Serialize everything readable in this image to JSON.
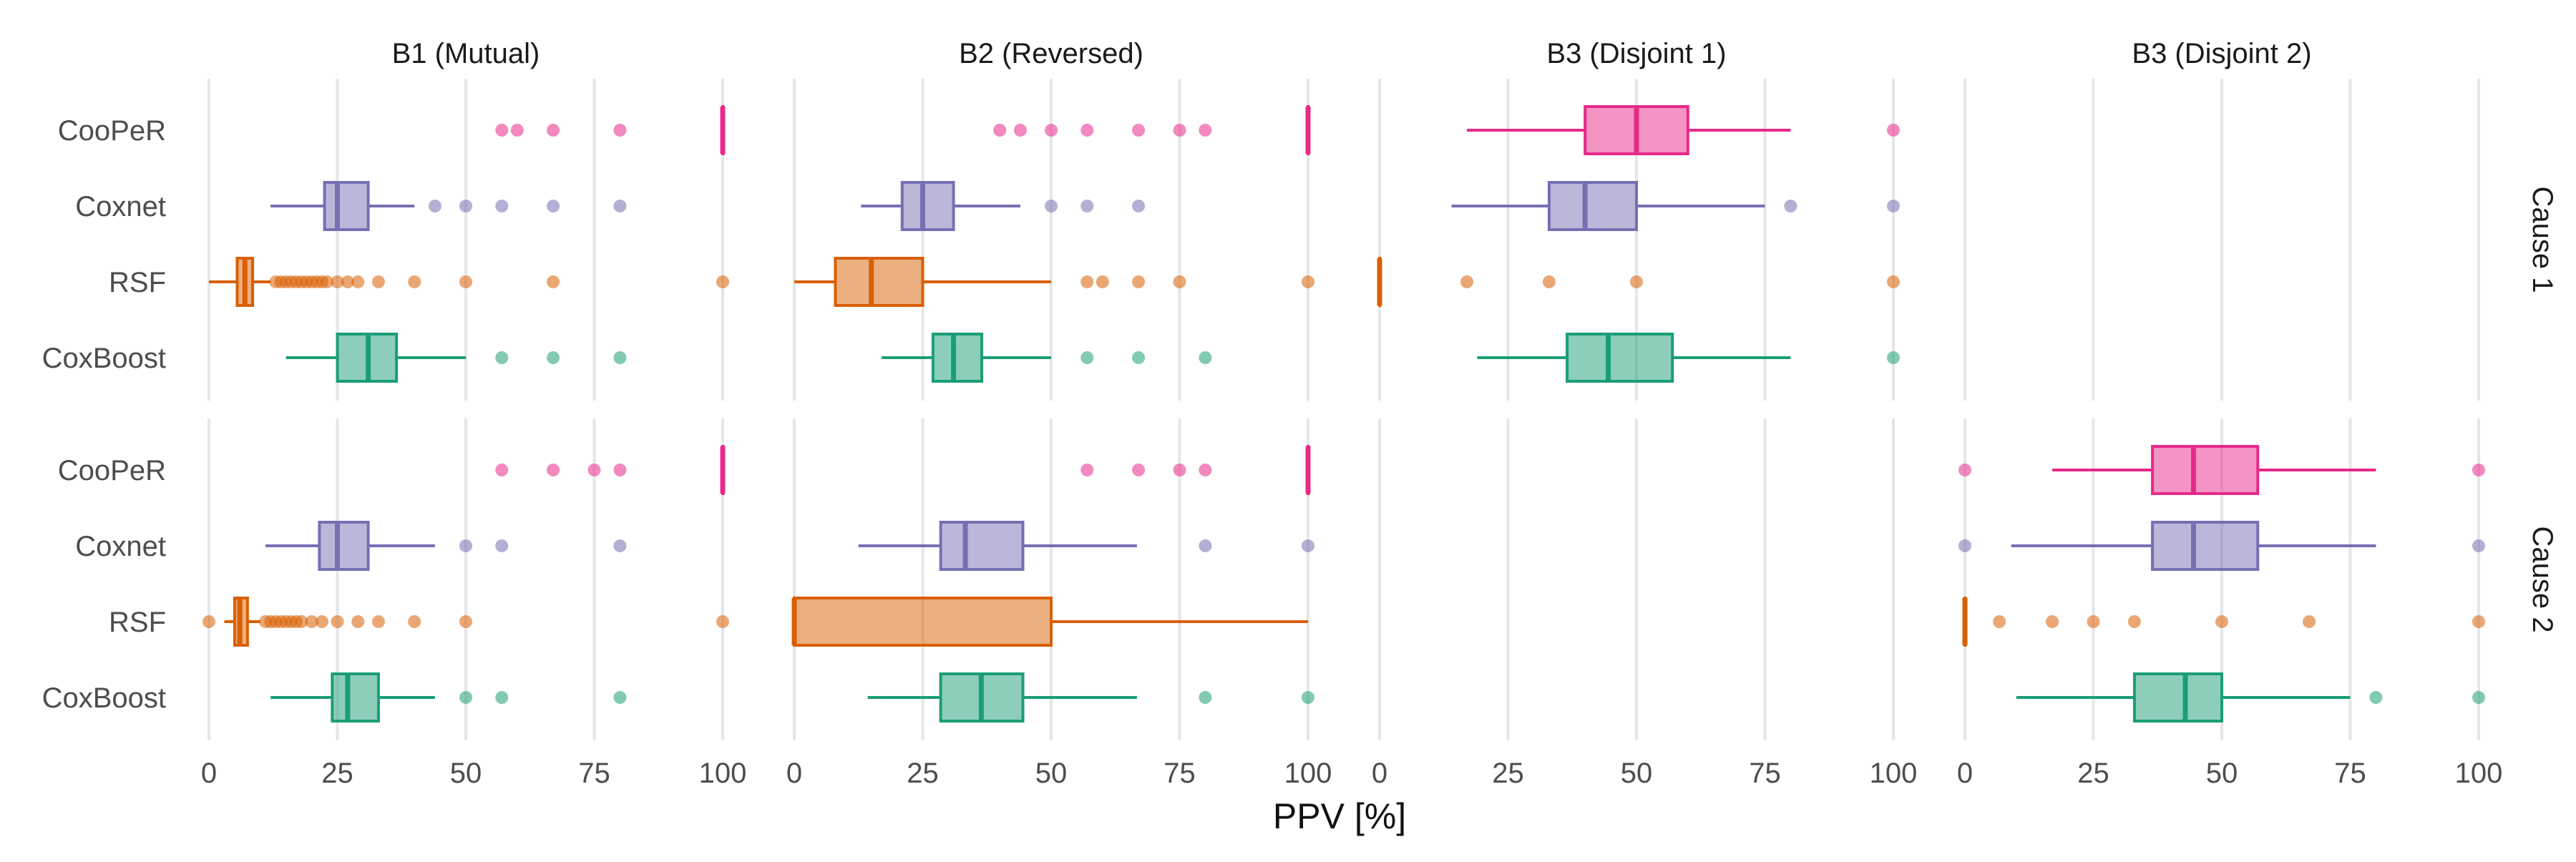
{
  "chart_data": {
    "type": "boxplot",
    "xlabel": "PPV [%]",
    "xlim": [
      0,
      100
    ],
    "x_ticks": [
      0,
      25,
      50,
      75,
      100
    ],
    "grid": true,
    "legend": "none",
    "facet_columns": [
      "B1 (Mutual)",
      "B2 (Reversed)",
      "B3 (Disjoint 1)",
      "B3 (Disjoint 2)"
    ],
    "facet_rows": [
      "Cause 1",
      "Cause 2"
    ],
    "models": [
      "CooPeR",
      "Coxnet",
      "RSF",
      "CoxBoost"
    ],
    "colors": {
      "CooPeR": "#e7298a",
      "Coxnet": "#7570b3",
      "RSF": "#d95f02",
      "CoxBoost": "#1b9e77"
    },
    "boxes": [
      {
        "col": "B1 (Mutual)",
        "row": "Cause 1",
        "model": "CooPeR",
        "whisker_low": 100,
        "q1": 100,
        "median": 100,
        "q3": 100,
        "whisker_high": 100,
        "outliers": [
          57,
          60,
          67,
          80
        ]
      },
      {
        "col": "B1 (Mutual)",
        "row": "Cause 1",
        "model": "Coxnet",
        "whisker_low": 12,
        "q1": 22.5,
        "median": 25,
        "q3": 31,
        "whisker_high": 40,
        "outliers": [
          44,
          50,
          57,
          67,
          80
        ]
      },
      {
        "col": "B1 (Mutual)",
        "row": "Cause 1",
        "model": "RSF",
        "whisker_low": 0,
        "q1": 5.5,
        "median": 7,
        "q3": 8.5,
        "whisker_high": 12,
        "outliers": [
          13,
          14,
          15,
          16,
          17,
          18,
          19,
          20,
          21,
          22,
          23,
          25,
          27,
          29,
          33,
          40,
          50,
          67,
          100
        ]
      },
      {
        "col": "B1 (Mutual)",
        "row": "Cause 1",
        "model": "CoxBoost",
        "whisker_low": 15,
        "q1": 25,
        "median": 31,
        "q3": 36.5,
        "whisker_high": 50,
        "outliers": [
          57,
          67,
          80
        ]
      },
      {
        "col": "B2 (Reversed)",
        "row": "Cause 1",
        "model": "CooPeR",
        "whisker_low": 100,
        "q1": 100,
        "median": 100,
        "q3": 100,
        "whisker_high": 100,
        "outliers": [
          40,
          44,
          50,
          57,
          67,
          75,
          80
        ]
      },
      {
        "col": "B2 (Reversed)",
        "row": "Cause 1",
        "model": "Coxnet",
        "whisker_low": 13,
        "q1": 21,
        "median": 25,
        "q3": 31,
        "whisker_high": 44,
        "outliers": [
          50,
          57,
          67
        ]
      },
      {
        "col": "B2 (Reversed)",
        "row": "Cause 1",
        "model": "RSF",
        "whisker_low": 0,
        "q1": 8,
        "median": 15,
        "q3": 25,
        "whisker_high": 50,
        "outliers": [
          57,
          60,
          67,
          75,
          100
        ]
      },
      {
        "col": "B2 (Reversed)",
        "row": "Cause 1",
        "model": "CoxBoost",
        "whisker_low": 17,
        "q1": 27,
        "median": 31,
        "q3": 36.5,
        "whisker_high": 50,
        "outliers": [
          57,
          67,
          80
        ]
      },
      {
        "col": "B3 (Disjoint 1)",
        "row": "Cause 1",
        "model": "CooPeR",
        "whisker_low": 17,
        "q1": 40,
        "median": 50,
        "q3": 60,
        "whisker_high": 80,
        "outliers": [
          100
        ]
      },
      {
        "col": "B3 (Disjoint 1)",
        "row": "Cause 1",
        "model": "Coxnet",
        "whisker_low": 14,
        "q1": 33,
        "median": 40,
        "q3": 50,
        "whisker_high": 75,
        "outliers": [
          80,
          100
        ]
      },
      {
        "col": "B3 (Disjoint 1)",
        "row": "Cause 1",
        "model": "RSF",
        "whisker_low": 0,
        "q1": 0,
        "median": 0,
        "q3": 0,
        "whisker_high": 0,
        "outliers": [
          17,
          33,
          50,
          100
        ]
      },
      {
        "col": "B3 (Disjoint 1)",
        "row": "Cause 1",
        "model": "CoxBoost",
        "whisker_low": 19,
        "q1": 36.5,
        "median": 44.5,
        "q3": 57,
        "whisker_high": 80,
        "outliers": [
          100
        ]
      },
      {
        "col": "B1 (Mutual)",
        "row": "Cause 2",
        "model": "CooPeR",
        "whisker_low": 100,
        "q1": 100,
        "median": 100,
        "q3": 100,
        "whisker_high": 100,
        "outliers": [
          57,
          67,
          75,
          80
        ]
      },
      {
        "col": "B1 (Mutual)",
        "row": "Cause 2",
        "model": "Coxnet",
        "whisker_low": 11,
        "q1": 21.5,
        "median": 25,
        "q3": 31,
        "whisker_high": 44,
        "outliers": [
          50,
          57,
          80
        ]
      },
      {
        "col": "B1 (Mutual)",
        "row": "Cause 2",
        "model": "RSF",
        "whisker_low": 3,
        "q1": 5,
        "median": 6,
        "q3": 7.5,
        "whisker_high": 10,
        "outliers": [
          0,
          11,
          12,
          13,
          14,
          15,
          16,
          17,
          18,
          20,
          22,
          25,
          29,
          33,
          40,
          50,
          100
        ]
      },
      {
        "col": "B1 (Mutual)",
        "row": "Cause 2",
        "model": "CoxBoost",
        "whisker_low": 12,
        "q1": 24,
        "median": 27,
        "q3": 33,
        "whisker_high": 44,
        "outliers": [
          50,
          57,
          80
        ]
      },
      {
        "col": "B2 (Reversed)",
        "row": "Cause 2",
        "model": "CooPeR",
        "whisker_low": 100,
        "q1": 100,
        "median": 100,
        "q3": 100,
        "whisker_high": 100,
        "outliers": [
          57,
          67,
          75,
          80
        ]
      },
      {
        "col": "B2 (Reversed)",
        "row": "Cause 2",
        "model": "Coxnet",
        "whisker_low": 12.5,
        "q1": 28.5,
        "median": 33.3,
        "q3": 44.5,
        "whisker_high": 66.7,
        "outliers": [
          80,
          100
        ]
      },
      {
        "col": "B2 (Reversed)",
        "row": "Cause 2",
        "model": "RSF",
        "whisker_low": 0,
        "q1": 0,
        "median": 0,
        "q3": 50,
        "whisker_high": 100,
        "outliers": []
      },
      {
        "col": "B2 (Reversed)",
        "row": "Cause 2",
        "model": "CoxBoost",
        "whisker_low": 14.3,
        "q1": 28.5,
        "median": 36.4,
        "q3": 44.5,
        "whisker_high": 66.7,
        "outliers": [
          80,
          100
        ]
      },
      {
        "col": "B3 (Disjoint 2)",
        "row": "Cause 2",
        "model": "CooPeR",
        "whisker_low": 17,
        "q1": 36.5,
        "median": 44.5,
        "q3": 57,
        "whisker_high": 80,
        "outliers": [
          0,
          100
        ]
      },
      {
        "col": "B3 (Disjoint 2)",
        "row": "Cause 2",
        "model": "Coxnet",
        "whisker_low": 9,
        "q1": 36.5,
        "median": 44.5,
        "q3": 57,
        "whisker_high": 80,
        "outliers": [
          0,
          100
        ]
      },
      {
        "col": "B3 (Disjoint 2)",
        "row": "Cause 2",
        "model": "RSF",
        "whisker_low": 0,
        "q1": 0,
        "median": 0,
        "q3": 0,
        "whisker_high": 0,
        "outliers": [
          6.7,
          17,
          25,
          33,
          50,
          67,
          100
        ]
      },
      {
        "col": "B3 (Disjoint 2)",
        "row": "Cause 2",
        "model": "CoxBoost",
        "whisker_low": 10,
        "q1": 33,
        "median": 42.9,
        "q3": 50,
        "whisker_high": 75,
        "outliers": [
          80,
          100
        ]
      }
    ]
  }
}
